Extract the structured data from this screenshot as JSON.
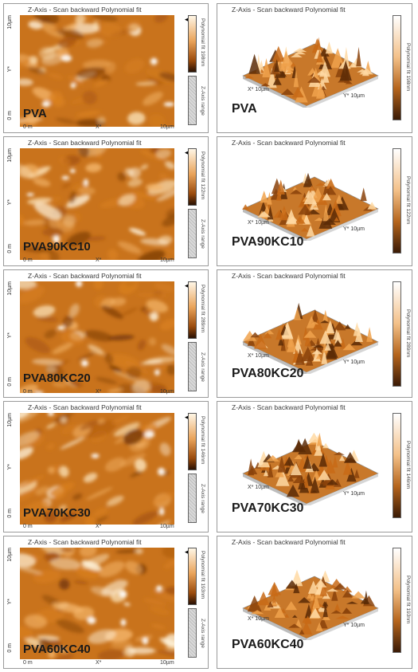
{
  "header": "Z-Axis - Scan backward    Polynomial fit",
  "axis": {
    "y_top": "10µm",
    "y_mid": "Y*",
    "y_bottom": "0 m",
    "x_left": "0 m",
    "x_mid": "X*",
    "x_right": "10µm",
    "x3d": "X* 10µm",
    "y3d": "Y* 10µm",
    "zrange": "Z-Axis range"
  },
  "rows": [
    {
      "sample": "PVA",
      "colorbar": "Polynomial fit 198nm"
    },
    {
      "sample": "PVA90KC10",
      "colorbar": "Polynomial fit 122nm"
    },
    {
      "sample": "PVA80KC20",
      "colorbar": "Polynomial fit 289nm"
    },
    {
      "sample": "PVA70KC30",
      "colorbar": "Polynomial fit 146nm"
    },
    {
      "sample": "PVA60KC40",
      "colorbar": "Polynomial fit 193nm"
    }
  ]
}
